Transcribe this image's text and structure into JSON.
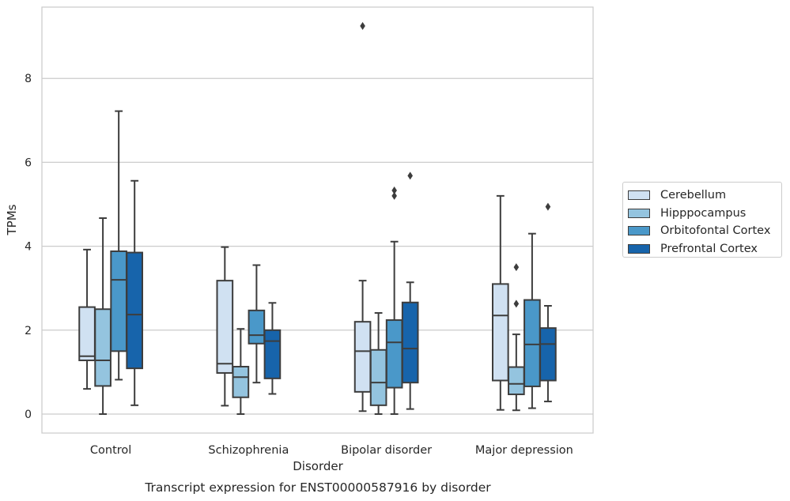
{
  "chart_data": {
    "type": "box",
    "title": "Transcript expression for ENST00000587916 by disorder",
    "xlabel": "Disorder",
    "ylabel": "TPMs",
    "ylim": [
      -0.45,
      9.7
    ],
    "yticks": [
      0,
      2,
      4,
      6,
      8
    ],
    "grid": "horizontal",
    "legend_position": "right",
    "categories": [
      "Control",
      "Schizophrenia",
      "Bipolar disorder",
      "Major depression"
    ],
    "series": [
      {
        "name": "Cerebellum",
        "color": "#d0e1f2",
        "boxes": [
          {
            "whislo": 0.6,
            "q1": 1.28,
            "med": 1.38,
            "q3": 2.55,
            "whishi": 3.92,
            "fliers": []
          },
          {
            "whislo": 0.2,
            "q1": 0.98,
            "med": 1.2,
            "q3": 3.18,
            "whishi": 3.98,
            "fliers": []
          },
          {
            "whislo": 0.07,
            "q1": 0.53,
            "med": 1.5,
            "q3": 2.2,
            "whishi": 3.18,
            "fliers": [
              9.25
            ]
          },
          {
            "whislo": 0.1,
            "q1": 0.8,
            "med": 2.35,
            "q3": 3.1,
            "whishi": 5.2,
            "fliers": []
          }
        ]
      },
      {
        "name": "Hipppocampus",
        "color": "#94c4df",
        "boxes": [
          {
            "whislo": 0.0,
            "q1": 0.67,
            "med": 1.28,
            "q3": 2.5,
            "whishi": 4.67,
            "fliers": []
          },
          {
            "whislo": 0.0,
            "q1": 0.4,
            "med": 0.88,
            "q3": 1.13,
            "whishi": 2.03,
            "fliers": []
          },
          {
            "whislo": 0.0,
            "q1": 0.21,
            "med": 0.75,
            "q3": 1.53,
            "whishi": 2.41,
            "fliers": []
          },
          {
            "whislo": 0.09,
            "q1": 0.47,
            "med": 0.72,
            "q3": 1.12,
            "whishi": 1.9,
            "fliers": [
              2.63,
              3.5
            ]
          }
        ]
      },
      {
        "name": "Orbitofontal Cortex",
        "color": "#4a98c9",
        "boxes": [
          {
            "whislo": 0.82,
            "q1": 1.5,
            "med": 3.2,
            "q3": 3.88,
            "whishi": 7.22,
            "fliers": []
          },
          {
            "whislo": 0.75,
            "q1": 1.68,
            "med": 1.88,
            "q3": 2.47,
            "whishi": 3.55,
            "fliers": []
          },
          {
            "whislo": 0.0,
            "q1": 0.63,
            "med": 1.71,
            "q3": 2.24,
            "whishi": 4.11,
            "fliers": [
              5.2,
              5.33
            ]
          },
          {
            "whislo": 0.14,
            "q1": 0.66,
            "med": 1.66,
            "q3": 2.72,
            "whishi": 4.3,
            "fliers": []
          }
        ]
      },
      {
        "name": "Prefrontal Cortex",
        "color": "#1764ab",
        "boxes": [
          {
            "whislo": 0.21,
            "q1": 1.09,
            "med": 2.37,
            "q3": 3.85,
            "whishi": 5.56,
            "fliers": []
          },
          {
            "whislo": 0.48,
            "q1": 0.85,
            "med": 1.74,
            "q3": 2.0,
            "whishi": 2.65,
            "fliers": []
          },
          {
            "whislo": 0.12,
            "q1": 0.75,
            "med": 1.56,
            "q3": 2.66,
            "whishi": 3.14,
            "fliers": [
              5.68
            ]
          },
          {
            "whislo": 0.3,
            "q1": 0.8,
            "med": 1.67,
            "q3": 2.05,
            "whishi": 2.58,
            "fliers": [
              4.94
            ]
          }
        ]
      }
    ]
  }
}
